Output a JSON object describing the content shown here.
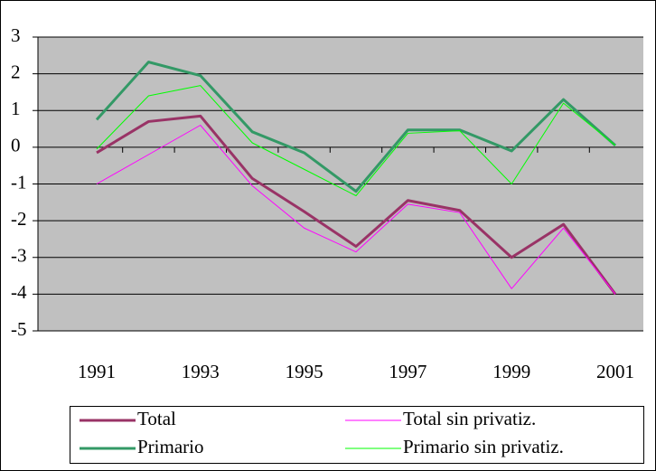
{
  "chart_data": {
    "type": "line",
    "categories": [
      "1991",
      null,
      "1993",
      null,
      "1995",
      null,
      "1997",
      null,
      "1999",
      null,
      "2001"
    ],
    "series": [
      {
        "name": "Total",
        "color": "#993366",
        "width": 3,
        "values": [
          -0.15,
          0.7,
          0.85,
          -0.85,
          -1.75,
          -2.7,
          -1.45,
          -1.72,
          -3.0,
          -2.1,
          -4.0
        ]
      },
      {
        "name": "Total sin privatiz.",
        "color": "#ff00ff",
        "width": 1,
        "values": [
          -1.0,
          -0.2,
          0.6,
          -1.05,
          -2.2,
          -2.85,
          -1.55,
          -1.78,
          -3.85,
          -2.2,
          -4.0
        ]
      },
      {
        "name": "Primario",
        "color": "#339966",
        "width": 3,
        "values": [
          0.75,
          2.32,
          1.95,
          0.42,
          -0.15,
          -1.2,
          0.47,
          0.47,
          -0.1,
          1.3,
          0.05
        ]
      },
      {
        "name": "Primario sin privatiz.",
        "color": "#00ff00",
        "width": 1,
        "values": [
          -0.05,
          1.4,
          1.68,
          0.12,
          -0.6,
          -1.32,
          0.38,
          0.45,
          -1.0,
          1.2,
          0.05
        ]
      }
    ],
    "ylim": [
      -5,
      3
    ],
    "yticks": [
      -5,
      -4,
      -3,
      -2,
      -1,
      0,
      1,
      2,
      3
    ],
    "grid": true,
    "plot_background": "#c0c0c0",
    "legend": "bottom"
  }
}
